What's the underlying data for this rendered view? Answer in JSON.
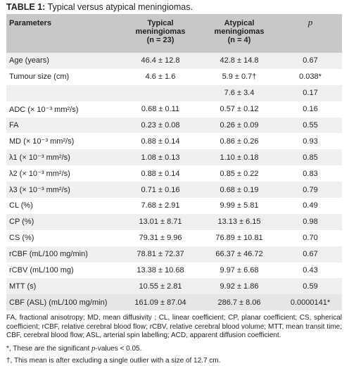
{
  "caption": {
    "label": "TABLE 1:",
    "title": " Typical versus atypical meningiomas."
  },
  "header": {
    "param": "Parameters",
    "typical": "Typical",
    "typical_sub": "meningiomas",
    "typical_n": "(n = 23)",
    "atypical": "Atypical",
    "atypical_sub": "meningiomas",
    "atypical_n": "(n = 4)",
    "p": "p"
  },
  "rows": [
    {
      "param": "Age (years)",
      "typical": "46.4 ± 12.8",
      "atypical": "42.8 ± 14.8",
      "p": "0.67"
    },
    {
      "param": "Tumour size (cm)",
      "typical": "4.6 ± 1.6",
      "atypical": "5.9 ± 0.7†",
      "p": "0.038*"
    },
    {
      "param": "",
      "typical": "",
      "atypical": "7.6 ± 3.4",
      "p": "0.17"
    },
    {
      "param": "ADC (× 10⁻³ mm²/s)",
      "typical": "0.68 ± 0.11",
      "atypical": "0.57 ± 0.12",
      "p": "0.16"
    },
    {
      "param": "FA",
      "typical": "0.23 ± 0.08",
      "atypical": "0.26 ± 0.09",
      "p": "0.55"
    },
    {
      "param": "MD (× 10⁻³ mm²/s)",
      "typical": "0.88 ± 0.14",
      "atypical": "0.86 ± 0.26",
      "p": "0.93"
    },
    {
      "param": "λ1 (× 10⁻³ mm²/s)",
      "typical": "1.08 ± 0.13",
      "atypical": "1.10 ± 0.18",
      "p": "0.85"
    },
    {
      "param": "λ2 (× 10⁻³ mm²/s)",
      "typical": "0.88 ± 0.14",
      "atypical": "0.85 ± 0.22",
      "p": "0.83"
    },
    {
      "param": "λ3 (× 10⁻³ mm²/s)",
      "typical": "0.71 ± 0.16",
      "atypical": "0.68 ± 0.19",
      "p": "0.79"
    },
    {
      "param": "CL (%)",
      "typical": "7.68 ± 2.91",
      "atypical": "9.99 ± 5.81",
      "p": "0.49"
    },
    {
      "param": "CP (%)",
      "typical": "13.01 ± 8.71",
      "atypical": "13.13 ± 6.15",
      "p": "0.98"
    },
    {
      "param": "CS (%)",
      "typical": "79.31 ± 9.96",
      "atypical": "76.89 ± 10.81",
      "p": "0.70"
    },
    {
      "param": "rCBF (mL/100 mg/min)",
      "typical": "78.81 ± 72.37",
      "atypical": "66.37 ± 46.72",
      "p": "0.67"
    },
    {
      "param": "rCBV (mL/100 mg)",
      "typical": "13.38 ± 10.68",
      "atypical": "9.97 ± 6.68",
      "p": "0.43"
    },
    {
      "param": "MTT (s)",
      "typical": "10.55 ± 2.81",
      "atypical": "9.92 ± 1.86",
      "p": "0.59"
    },
    {
      "param": "CBF (ASL) (mL/100 mg/min)",
      "typical": "161.09 ± 87.04",
      "atypical": "286.7 ± 8.06",
      "p": "0.0000141*"
    }
  ],
  "footer": {
    "abbreviations": "FA, fractional anisotropy; MD, mean diffusivity ; CL, linear coefficient; CP, planar coefficient; CS, spherical coefficient; rCBF, relative cerebral blood flow; rCBV, relative cerebral blood volume; MTT, mean transit time; CBF, cerebral blood flow; ASL, arterial spin labelling; ACD, apparent diffusion coefficient.",
    "note1_pre": "*, These are the significant ",
    "note1_p": "p",
    "note1_post": "-values < 0.05.",
    "note2": "†, This mean is after excluding a single outlier with a size of 12.7 cm."
  },
  "colors": {
    "header_bg": "#c8c8c8",
    "row_shade": "#efefef",
    "text": "#231f20"
  }
}
